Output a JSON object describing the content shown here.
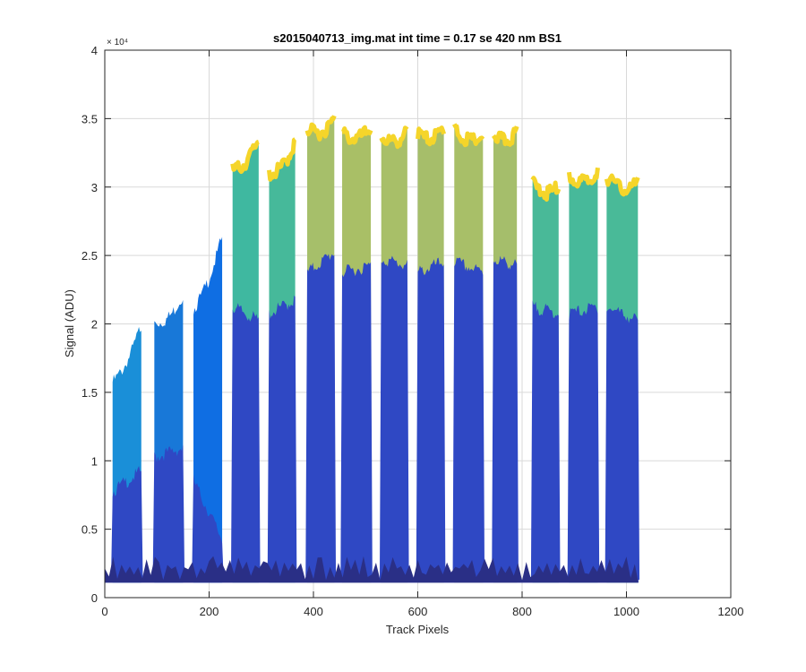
{
  "chart_data": {
    "type": "area",
    "title": "s2015040713_img.mat int time = 0.17 se  420 nm BS1",
    "xlabel": "Track Pixels",
    "ylabel": "Signal (ADU)",
    "xlim": [
      0,
      1200
    ],
    "ylim": [
      0,
      40000
    ],
    "xticks": [
      0,
      200,
      400,
      600,
      800,
      1000,
      1200
    ],
    "yticks": [
      0,
      5000,
      10000,
      15000,
      20000,
      25000,
      30000,
      35000,
      40000
    ],
    "xtick_labels": [
      "0",
      "200",
      "400",
      "600",
      "800",
      "1000",
      "1200"
    ],
    "ytick_labels": [
      "0",
      "0.5",
      "1",
      "1.5",
      "2",
      "2.5",
      "3",
      "3.5",
      "4"
    ],
    "y_exponent_label": "× 10⁴",
    "grid": true,
    "colormap": "parula",
    "x_extent": [
      0,
      1023
    ],
    "baseline": 1100,
    "gap_floor": 1300,
    "segments": [
      {
        "x": [
          15,
          70
        ],
        "top_start": 16000,
        "top_end": 20200,
        "mid": 8000,
        "low_start": 8000,
        "low_end": 9500,
        "color": "#1a8fd8"
      },
      {
        "x": [
          95,
          150
        ],
        "top_start": 20300,
        "top_end": 22400,
        "mid": 10800,
        "low_start": 10500,
        "low_end": 11200,
        "color": "#1878d8"
      },
      {
        "x": [
          170,
          225
        ],
        "top_start": 21300,
        "top_end": 26600,
        "mid": 7500,
        "low_start": 8800,
        "low_end": 4500,
        "color": "#0f6ee3"
      },
      {
        "x": [
          245,
          295
        ],
        "top_start": 31500,
        "top_end": 33800,
        "mid": 21000,
        "low_start": 21500,
        "low_end": 20500,
        "color": "#3fb8a0"
      },
      {
        "x": [
          315,
          365
        ],
        "top_start": 31200,
        "top_end": 33500,
        "mid": 21500,
        "low_start": 21000,
        "low_end": 22000,
        "color": "#46b99a"
      },
      {
        "x": [
          388,
          440
        ],
        "top_start": 34500,
        "top_end": 35200,
        "mid": 24500,
        "low_start": 24000,
        "low_end": 25500,
        "color": "#a6bf6a"
      },
      {
        "x": [
          455,
          510
        ],
        "top_start": 34200,
        "top_end": 34600,
        "mid": 24500,
        "low_start": 24000,
        "low_end": 24500,
        "color": "#a9bf66"
      },
      {
        "x": [
          530,
          580
        ],
        "top_start": 34000,
        "top_end": 34300,
        "mid": 24500,
        "low_start": 25000,
        "low_end": 24500,
        "color": "#a8bf68"
      },
      {
        "x": [
          600,
          650
        ],
        "top_start": 34200,
        "top_end": 34600,
        "mid": 24000,
        "low_start": 24000,
        "low_end": 24800,
        "color": "#a6be6a"
      },
      {
        "x": [
          670,
          725
        ],
        "top_start": 34500,
        "top_end": 34000,
        "mid": 25000,
        "low_start": 24800,
        "low_end": 24000,
        "color": "#a8bf68"
      },
      {
        "x": [
          745,
          790
        ],
        "top_start": 34200,
        "top_end": 34300,
        "mid": 24500,
        "low_start": 25000,
        "low_end": 24500,
        "color": "#a5be6b"
      },
      {
        "x": [
          820,
          870
        ],
        "top_start": 30500,
        "top_end": 30300,
        "mid": 20500,
        "low_start": 21500,
        "low_end": 21000,
        "color": "#49b998"
      },
      {
        "x": [
          890,
          945
        ],
        "top_start": 31000,
        "top_end": 31500,
        "mid": 21500,
        "low_start": 21000,
        "low_end": 21500,
        "color": "#47b99a"
      },
      {
        "x": [
          962,
          1022
        ],
        "top_start": 31000,
        "top_end": 30500,
        "mid": 20000,
        "low_start": 21500,
        "low_end": 20500,
        "color": "#49ba98"
      }
    ]
  }
}
